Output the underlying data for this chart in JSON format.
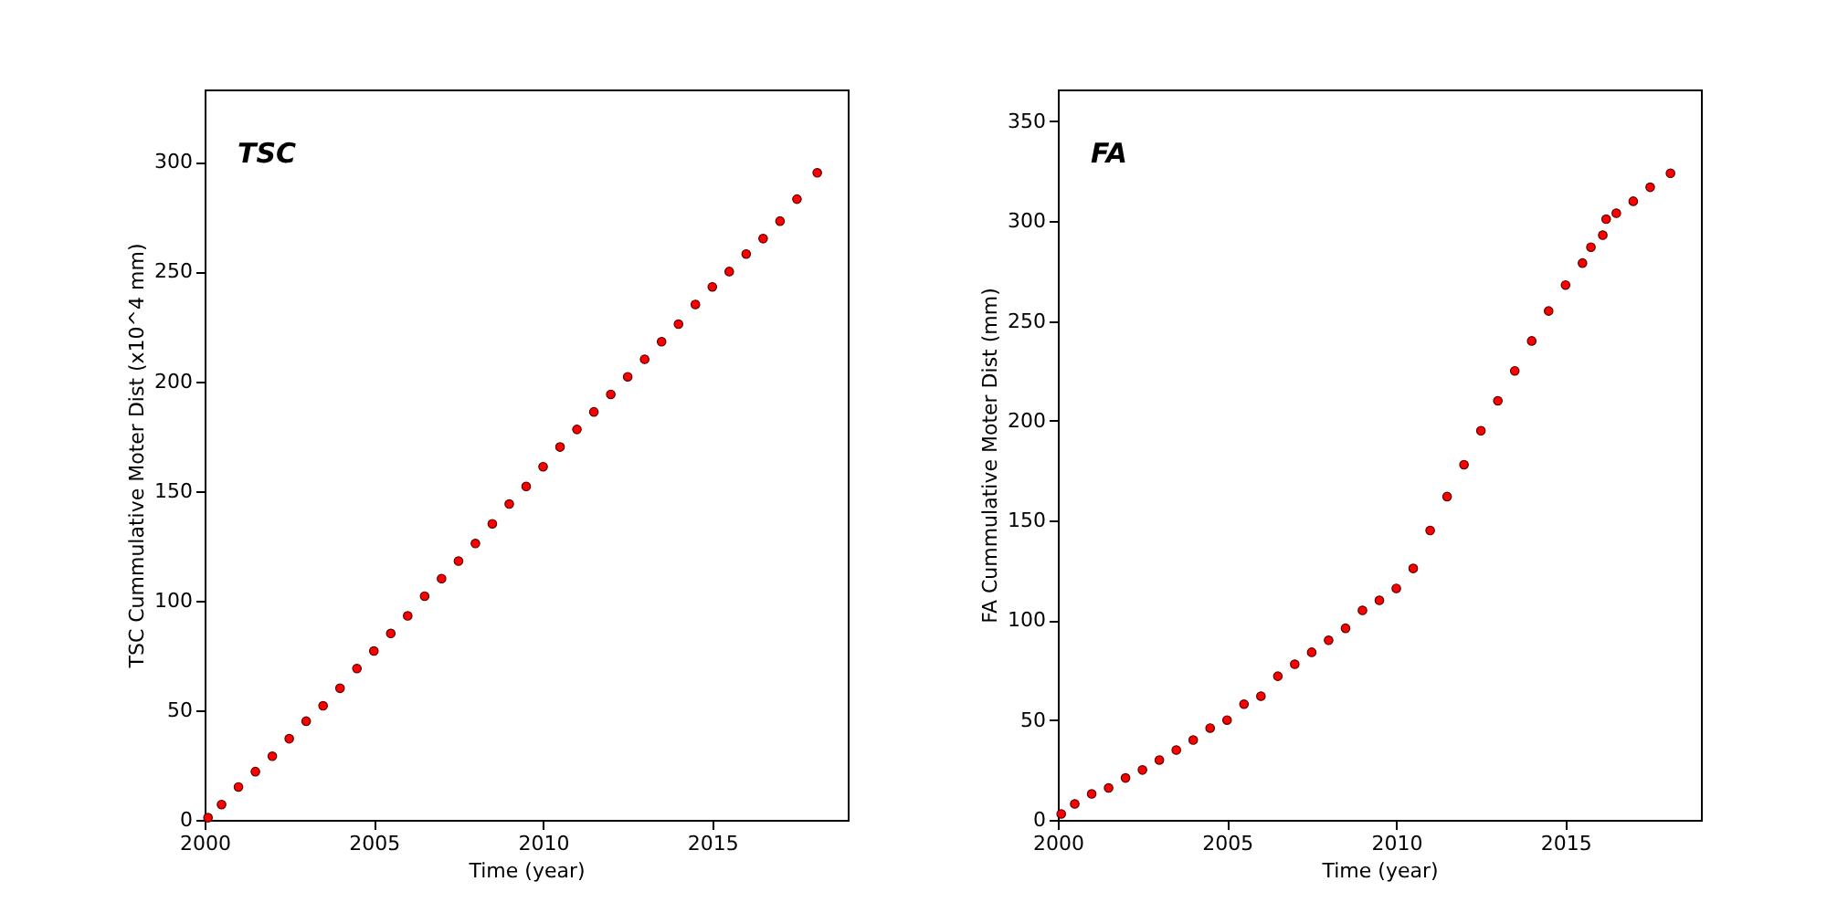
{
  "chart_data": [
    {
      "type": "scatter",
      "annotations": [
        "TSC"
      ],
      "xlabel": "Time (year)",
      "ylabel": "TSC Cummulative Moter Dist (x10^4 mm)",
      "color": "#ff0000",
      "marker": "circle",
      "x": [
        2000.1,
        2000.5,
        2001,
        2001.5,
        2002,
        2002.5,
        2003,
        2003.5,
        2004,
        2004.5,
        2005,
        2005.5,
        2006,
        2006.5,
        2007,
        2007.5,
        2008,
        2008.5,
        2009,
        2009.5,
        2010,
        2010.5,
        2011,
        2011.5,
        2012,
        2012.5,
        2013,
        2013.5,
        2014,
        2014.5,
        2015,
        2015.5,
        2016,
        2016.5,
        2017,
        2017.5,
        2018.1
      ],
      "values": [
        1,
        7,
        15,
        22,
        29,
        37,
        45,
        52,
        60,
        69,
        77,
        85,
        93,
        102,
        110,
        118,
        126,
        135,
        144,
        152,
        161,
        170,
        178,
        186,
        194,
        202,
        210,
        218,
        226,
        235,
        243,
        250,
        258,
        265,
        273,
        283,
        295
      ],
      "xlim": [
        2000,
        2019
      ],
      "xticks": [
        2000,
        2005,
        2010,
        2015
      ],
      "ylim": [
        0,
        333
      ],
      "yticks": [
        0,
        50,
        100,
        150,
        200,
        250,
        300
      ]
    },
    {
      "type": "scatter",
      "annotations": [
        "FA"
      ],
      "xlabel": "Time (year)",
      "ylabel": "FA Cummulative Moter Dist (mm)",
      "color": "#ff0000",
      "marker": "circle",
      "x": [
        2000.1,
        2000.5,
        2001,
        2001.5,
        2002,
        2002.5,
        2003,
        2003.5,
        2004,
        2004.5,
        2005,
        2005.5,
        2006,
        2006.5,
        2007,
        2007.5,
        2008,
        2008.5,
        2009,
        2009.5,
        2010,
        2010.5,
        2011,
        2011.5,
        2012,
        2012.5,
        2013,
        2013.5,
        2014,
        2014.5,
        2015,
        2015.5,
        2015.75,
        2016.1,
        2016.2,
        2016.5,
        2017,
        2017.5,
        2018.1
      ],
      "values": [
        3,
        8,
        13,
        16,
        21,
        25,
        30,
        35,
        40,
        46,
        50,
        58,
        62,
        72,
        78,
        84,
        90,
        96,
        105,
        110,
        116,
        126,
        145,
        162,
        178,
        195,
        210,
        225,
        240,
        255,
        268,
        279,
        287,
        293,
        301,
        304,
        310,
        317,
        324
      ],
      "xlim": [
        2000,
        2019
      ],
      "xticks": [
        2000,
        2005,
        2010,
        2015
      ],
      "ylim": [
        0,
        366
      ],
      "yticks": [
        0,
        50,
        100,
        150,
        200,
        250,
        300,
        350
      ]
    }
  ]
}
